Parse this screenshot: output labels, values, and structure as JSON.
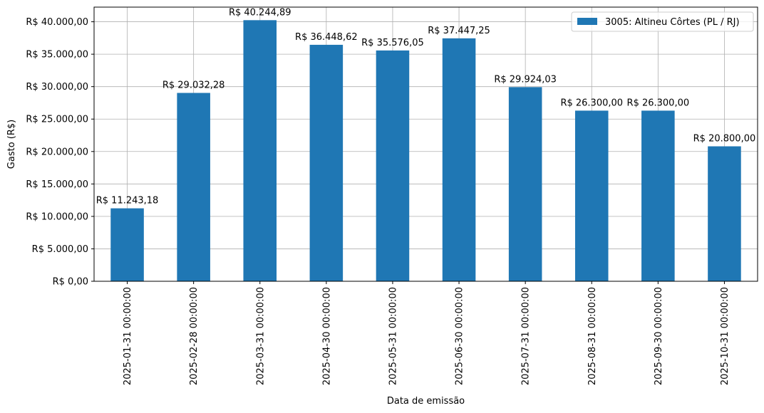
{
  "chart_data": {
    "type": "bar",
    "xlabel": "Data de emissão",
    "ylabel": "Gasto (R$)",
    "categories": [
      "2025-01-31 00:00:00",
      "2025-02-28 00:00:00",
      "2025-03-31 00:00:00",
      "2025-04-30 00:00:00",
      "2025-05-31 00:00:00",
      "2025-06-30 00:00:00",
      "2025-07-31 00:00:00",
      "2025-08-31 00:00:00",
      "2025-09-30 00:00:00",
      "2025-10-31 00:00:00"
    ],
    "series": [
      {
        "name": "3005: Altineu Côrtes (PL / RJ)",
        "color": "#1f77b4",
        "values": [
          11243.18,
          29032.28,
          40244.89,
          36448.62,
          35576.05,
          37447.25,
          29924.03,
          26300.0,
          26300.0,
          20800.0
        ],
        "labels": [
          "R$ 11.243,18",
          "R$ 29.032,28",
          "R$ 40.244,89",
          "R$ 36.448,62",
          "R$ 35.576,05",
          "R$ 37.447,25",
          "R$ 29.924,03",
          "R$ 26.300,00",
          "R$ 26.300,00",
          "R$ 20.800,00"
        ]
      }
    ],
    "ylim": [
      0,
      42257
    ],
    "yticks": [
      0,
      5000,
      10000,
      15000,
      20000,
      25000,
      30000,
      35000,
      40000
    ],
    "ytick_labels": [
      "R$ 0,00",
      "R$ 5.000,00",
      "R$ 10.000,00",
      "R$ 15.000,00",
      "R$ 20.000,00",
      "R$ 25.000,00",
      "R$ 30.000,00",
      "R$ 35.000,00",
      "R$ 40.000,00"
    ],
    "grid": true,
    "legend_position": "top-right"
  }
}
